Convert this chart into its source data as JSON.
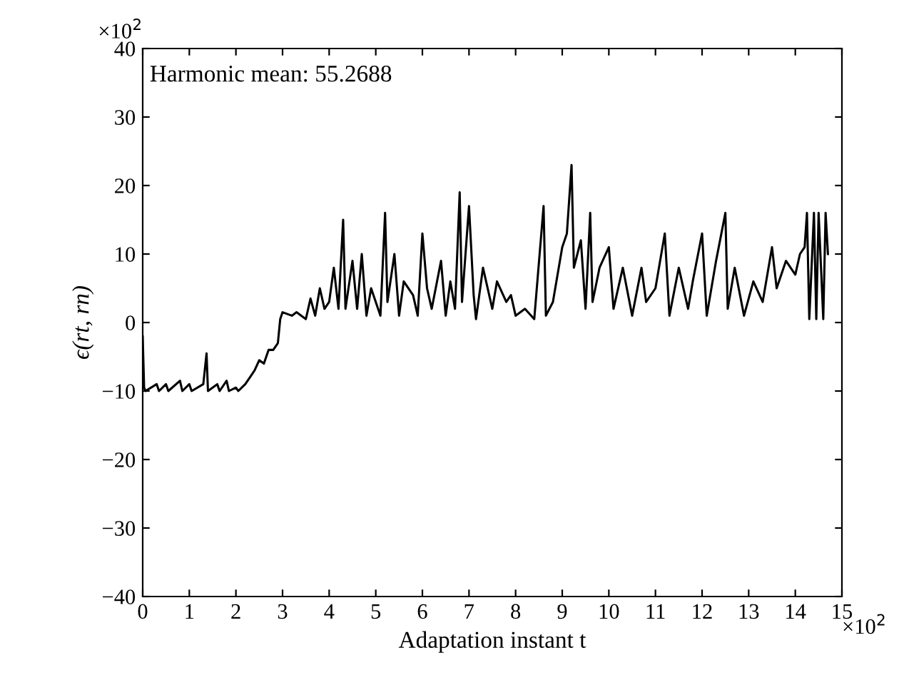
{
  "chart_data": {
    "type": "line",
    "xlabel": "Adaptation instant t",
    "ylabel": "ϵ(rt, rn)",
    "annotations": [
      "Harmonic mean: 55.2688",
      "×10$^{2}$",
      "×10$^{2}$"
    ],
    "x": [
      0,
      0.03,
      0.06,
      0.3,
      0.35,
      0.5,
      0.55,
      0.8,
      0.85,
      1.0,
      1.05,
      1.3,
      1.37,
      1.4,
      1.6,
      1.65,
      1.8,
      1.85,
      2.0,
      2.05,
      2.2,
      2.3,
      2.4,
      2.5,
      2.6,
      2.7,
      2.8,
      2.9,
      2.95,
      3.0,
      3.2,
      3.3,
      3.5,
      3.6,
      3.7,
      3.8,
      3.9,
      4.0,
      4.1,
      4.2,
      4.3,
      4.35,
      4.5,
      4.6,
      4.7,
      4.8,
      4.9,
      5.0,
      5.1,
      5.2,
      5.25,
      5.4,
      5.5,
      5.6,
      5.8,
      5.9,
      6.0,
      6.1,
      6.2,
      6.4,
      6.5,
      6.6,
      6.7,
      6.8,
      6.85,
      7.0,
      7.1,
      7.15,
      7.3,
      7.5,
      7.6,
      7.8,
      7.9,
      8.0,
      8.2,
      8.4,
      8.6,
      8.65,
      8.8,
      9.0,
      9.1,
      9.2,
      9.25,
      9.4,
      9.5,
      9.6,
      9.65,
      9.8,
      10.0,
      10.1,
      10.3,
      10.5,
      10.7,
      10.8,
      11.0,
      11.2,
      11.3,
      11.5,
      11.7,
      11.8,
      12.0,
      12.1,
      12.3,
      12.5,
      12.55,
      12.7,
      12.9,
      13.1,
      13.3,
      13.5,
      13.6,
      13.8,
      14.0,
      14.1,
      14.2,
      14.25,
      14.3,
      14.4,
      14.45,
      14.5,
      14.6,
      14.65,
      14.7
    ],
    "series": [
      {
        "color": "#000000",
        "values": [
          -2,
          -9.5,
          -10,
          -9,
          -10,
          -9,
          -10,
          -8.5,
          -10,
          -9,
          -10,
          -9,
          -4.5,
          -10,
          -9,
          -10,
          -8.5,
          -10,
          -9.5,
          -10,
          -9,
          -8,
          -7,
          -5.5,
          -6,
          -4,
          -4,
          -3,
          0.5,
          1.5,
          1,
          1.5,
          0.5,
          3.5,
          1,
          5,
          2,
          3,
          8,
          2,
          15,
          2,
          9,
          2,
          10,
          1,
          5,
          3,
          1,
          16,
          3,
          10,
          1,
          6,
          4,
          1,
          13,
          5,
          2,
          9,
          1,
          6,
          2,
          19,
          3,
          17,
          4,
          0.5,
          8,
          2,
          6,
          3,
          4,
          1,
          2,
          0.5,
          17,
          1,
          3,
          11,
          13,
          23,
          8,
          12,
          2,
          16,
          3,
          8,
          11,
          2,
          8,
          1,
          8,
          3,
          5,
          13,
          1,
          8,
          2,
          6,
          13,
          1,
          9,
          16,
          2,
          8,
          1,
          6,
          3,
          11,
          5,
          9,
          7,
          10,
          11,
          16,
          0.5,
          16,
          0.5,
          16,
          0.5,
          16,
          10
        ]
      }
    ],
    "xlim": [
      0,
      15
    ],
    "ylim": [
      -40,
      40
    ],
    "xticks": [
      0,
      1,
      2,
      3,
      4,
      5,
      6,
      7,
      8,
      9,
      10,
      11,
      12,
      13,
      14,
      15
    ],
    "yticks": [
      {
        "value": -40,
        "label": "−40"
      },
      {
        "value": -30,
        "label": "−30"
      },
      {
        "value": -20,
        "label": "−20"
      },
      {
        "value": -10,
        "label": "−10"
      },
      0,
      10,
      20,
      30,
      40
    ],
    "grid": false,
    "legend": false
  }
}
